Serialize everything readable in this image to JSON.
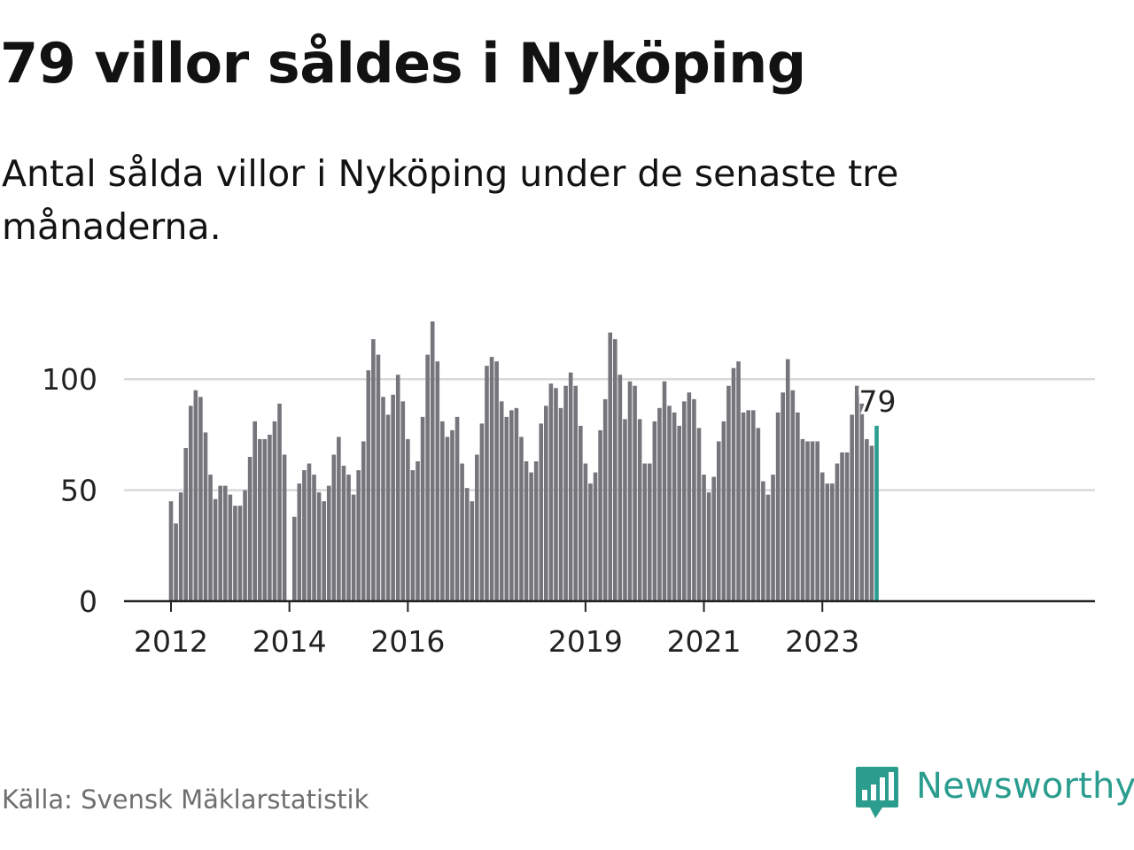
{
  "title": "79 villor såldes i Nyköping",
  "subtitle": "Antal sålda villor i Nyköping under de senaste tre månaderna.",
  "source": "Källa: Svensk Mäklarstatistik",
  "logo_text": "Newsworthy",
  "colors": {
    "bar": "#76757b",
    "highlight": "#2a9d8f",
    "grid": "#d9d9d9",
    "axis": "#222222"
  },
  "chart_data": {
    "type": "bar",
    "title": "79 villor såldes i Nyköping",
    "subtitle": "Antal sålda villor i Nyköping under de senaste tre månaderna.",
    "xlabel": "",
    "ylabel": "",
    "ylim": [
      0,
      130
    ],
    "yticks": [
      0,
      50,
      100
    ],
    "xtick_labels": [
      "2012",
      "2014",
      "2016",
      "2019",
      "2021",
      "2023"
    ],
    "grid": true,
    "highlight_label": "79",
    "x": [
      "2012-01",
      "2012-02",
      "2012-03",
      "2012-04",
      "2012-05",
      "2012-06",
      "2012-07",
      "2012-08",
      "2012-09",
      "2012-10",
      "2012-11",
      "2012-12",
      "2013-01",
      "2013-02",
      "2013-03",
      "2013-04",
      "2013-05",
      "2013-06",
      "2013-07",
      "2013-08",
      "2013-09",
      "2013-10",
      "2013-11",
      "2013-12",
      "2014-01",
      "2014-02",
      "2014-03",
      "2014-04",
      "2014-05",
      "2014-06",
      "2014-07",
      "2014-08",
      "2014-09",
      "2014-10",
      "2014-11",
      "2014-12",
      "2015-01",
      "2015-02",
      "2015-03",
      "2015-04",
      "2015-05",
      "2015-06",
      "2015-07",
      "2015-08",
      "2015-09",
      "2015-10",
      "2015-11",
      "2015-12",
      "2016-01",
      "2016-02",
      "2016-03",
      "2016-04",
      "2016-05",
      "2016-06",
      "2016-07",
      "2016-08",
      "2016-09",
      "2016-10",
      "2016-11",
      "2016-12",
      "2017-01",
      "2017-02",
      "2017-03",
      "2017-04",
      "2017-05",
      "2017-06",
      "2017-07",
      "2017-08",
      "2017-09",
      "2017-10",
      "2017-11",
      "2017-12",
      "2018-01",
      "2018-02",
      "2018-03",
      "2018-04",
      "2018-05",
      "2018-06",
      "2018-07",
      "2018-08",
      "2018-09",
      "2018-10",
      "2018-11",
      "2018-12",
      "2019-01",
      "2019-02",
      "2019-03",
      "2019-04",
      "2019-05",
      "2019-06",
      "2019-07",
      "2019-08",
      "2019-09",
      "2019-10",
      "2019-11",
      "2019-12",
      "2020-01",
      "2020-02",
      "2020-03",
      "2020-04",
      "2020-05",
      "2020-06",
      "2020-07",
      "2020-08",
      "2020-09",
      "2020-10",
      "2020-11",
      "2020-12",
      "2021-01",
      "2021-02",
      "2021-03",
      "2021-04",
      "2021-05",
      "2021-06",
      "2021-07",
      "2021-08",
      "2021-09",
      "2021-10",
      "2021-11",
      "2021-12",
      "2022-01",
      "2022-02",
      "2022-03",
      "2022-04",
      "2022-05",
      "2022-06",
      "2022-07",
      "2022-08",
      "2022-09",
      "2022-10",
      "2022-11",
      "2022-12",
      "2023-01",
      "2023-02",
      "2023-03",
      "2023-04",
      "2023-05",
      "2023-06",
      "2023-07",
      "2023-08",
      "2023-09",
      "2023-10",
      "2023-11",
      "2023-12"
    ],
    "values": [
      45,
      35,
      49,
      69,
      88,
      95,
      92,
      76,
      57,
      46,
      52,
      52,
      48,
      43,
      43,
      50,
      65,
      81,
      73,
      73,
      75,
      81,
      89,
      66,
      null,
      38,
      53,
      59,
      62,
      57,
      49,
      45,
      52,
      66,
      74,
      61,
      57,
      48,
      59,
      72,
      104,
      118,
      111,
      92,
      84,
      93,
      102,
      90,
      73,
      59,
      63,
      83,
      111,
      126,
      108,
      81,
      74,
      77,
      83,
      62,
      51,
      45,
      66,
      80,
      106,
      110,
      108,
      90,
      83,
      86,
      87,
      74,
      63,
      58,
      63,
      80,
      88,
      98,
      96,
      87,
      97,
      103,
      97,
      79,
      62,
      53,
      58,
      77,
      91,
      121,
      118,
      102,
      82,
      99,
      97,
      82,
      62,
      62,
      81,
      87,
      99,
      88,
      85,
      79,
      90,
      94,
      91,
      78,
      57,
      49,
      56,
      72,
      81,
      97,
      105,
      108,
      85,
      86,
      86,
      78,
      54,
      48,
      57,
      85,
      94,
      109,
      95,
      85,
      73,
      72,
      72,
      72,
      58,
      53,
      53,
      62,
      67,
      67,
      84,
      97,
      89,
      73,
      70,
      79
    ]
  }
}
